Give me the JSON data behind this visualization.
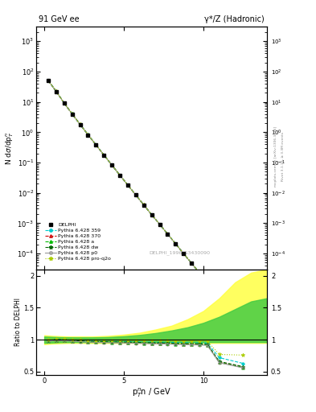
{
  "title_left": "91 GeV ee",
  "title_right": "γ*/Z (Hadronic)",
  "ylabel_main": "N dσ/dp$_T^n$",
  "ylabel_ratio": "Ratio to DELPHI",
  "xlabel": "p$_T^n$n / GeV",
  "watermark": "DELPHI_1996_S3430090",
  "right_label": "Rivet 3.1.10, ≥ 3.3M events",
  "right_label2": "mcplots.cern.ch [arXiv:1306.3436]",
  "x_data": [
    0.25,
    0.75,
    1.25,
    1.75,
    2.25,
    2.75,
    3.25,
    3.75,
    4.25,
    4.75,
    5.25,
    5.75,
    6.25,
    6.75,
    7.25,
    7.75,
    8.25,
    8.75,
    9.25,
    9.75,
    10.25,
    11.0,
    12.5
  ],
  "delphi_y": [
    50.0,
    22.0,
    9.0,
    4.0,
    1.8,
    0.82,
    0.38,
    0.175,
    0.082,
    0.038,
    0.018,
    0.0085,
    0.004,
    0.0019,
    0.00092,
    0.00044,
    0.00021,
    0.0001,
    4.8e-05,
    2.3e-05,
    1.15e-05,
    4.2e-06,
    2.8e-07
  ],
  "delphi_yerr": [
    2.0,
    0.8,
    0.3,
    0.15,
    0.06,
    0.028,
    0.013,
    0.006,
    0.003,
    0.0013,
    0.0006,
    0.0003,
    0.00014,
    6.6e-05,
    3.2e-05,
    1.5e-05,
    7.5e-06,
    3.6e-06,
    1.75e-06,
    8.5e-07,
    4.3e-07,
    1.6e-07,
    1e-08
  ],
  "py359_y": [
    50.5,
    22.3,
    9.15,
    4.04,
    1.82,
    0.83,
    0.384,
    0.177,
    0.083,
    0.0384,
    0.0182,
    0.0086,
    0.00405,
    0.00192,
    0.00093,
    0.000445,
    0.000213,
    0.000101,
    4.86e-05,
    2.33e-05,
    1.16e-05,
    4.25e-06,
    2.84e-07
  ],
  "py370_y": [
    50.3,
    22.2,
    9.09,
    4.02,
    1.81,
    0.822,
    0.381,
    0.1757,
    0.0823,
    0.0382,
    0.01812,
    0.00854,
    0.00402,
    0.00191,
    0.000925,
    0.000442,
    0.000211,
    0.0001003,
    4.83e-05,
    2.31e-05,
    1.16e-05,
    4.22e-06,
    2.81e-07
  ],
  "pya_y": [
    50.2,
    22.1,
    9.05,
    4.01,
    1.805,
    0.821,
    0.381,
    0.1755,
    0.0822,
    0.0381,
    0.01811,
    0.00852,
    0.004015,
    0.001905,
    0.000921,
    0.000441,
    0.000211,
    0.0001002,
    4.82e-05,
    2.31e-05,
    1.15e-05,
    4.21e-06,
    2.81e-07
  ],
  "pydw_y": [
    50.4,
    22.25,
    9.12,
    4.03,
    1.815,
    0.825,
    0.382,
    0.1762,
    0.0825,
    0.0383,
    0.01815,
    0.00856,
    0.00403,
    0.00191,
    0.000923,
    0.000443,
    0.000212,
    0.0001005,
    4.84e-05,
    2.32e-05,
    1.16e-05,
    4.23e-06,
    2.83e-07
  ],
  "pyp0_y": [
    50.1,
    22.0,
    9.0,
    4.0,
    1.8,
    0.82,
    0.38,
    0.175,
    0.082,
    0.038,
    0.018,
    0.0085,
    0.004,
    0.0019,
    0.00092,
    0.00044,
    0.00021,
    0.0001,
    4.8e-05,
    2.3e-05,
    1.15e-05,
    4.2e-06,
    2.8e-07
  ],
  "pyproq2o_y": [
    50.6,
    22.4,
    9.18,
    4.06,
    1.825,
    0.832,
    0.385,
    0.1775,
    0.0832,
    0.0386,
    0.01825,
    0.00862,
    0.00407,
    0.00193,
    0.000933,
    0.000447,
    0.000214,
    0.0001018,
    4.89e-05,
    2.35e-05,
    1.17e-05,
    4.28e-06,
    2.85e-07
  ],
  "ratio_x": [
    0.25,
    0.75,
    1.25,
    1.75,
    2.25,
    2.75,
    3.25,
    3.75,
    4.25,
    4.75,
    5.25,
    5.75,
    6.25,
    6.75,
    7.25,
    7.75,
    8.25,
    8.75,
    9.25,
    9.75,
    10.25,
    11.0,
    12.5
  ],
  "ratio_py359": [
    0.99,
    1.01,
    1.005,
    0.99,
    0.985,
    0.98,
    0.978,
    0.975,
    0.975,
    0.975,
    0.972,
    0.968,
    0.965,
    0.965,
    0.96,
    0.96,
    0.955,
    0.955,
    0.952,
    0.95,
    0.947,
    0.72,
    0.63
  ],
  "ratio_py370": [
    0.985,
    0.995,
    0.99,
    0.982,
    0.975,
    0.97,
    0.966,
    0.963,
    0.96,
    0.958,
    0.955,
    0.952,
    0.948,
    0.946,
    0.942,
    0.94,
    0.935,
    0.932,
    0.928,
    0.925,
    0.92,
    0.65,
    0.57
  ],
  "ratio_pya": [
    0.983,
    0.993,
    0.988,
    0.98,
    0.973,
    0.968,
    0.964,
    0.961,
    0.958,
    0.956,
    0.953,
    0.95,
    0.946,
    0.944,
    0.94,
    0.938,
    0.933,
    0.93,
    0.926,
    0.923,
    0.918,
    0.645,
    0.565
  ],
  "ratio_pydw": [
    0.992,
    1.005,
    1.0,
    0.99,
    0.982,
    0.975,
    0.972,
    0.969,
    0.968,
    0.967,
    0.963,
    0.96,
    0.956,
    0.955,
    0.951,
    0.95,
    0.945,
    0.943,
    0.94,
    0.937,
    0.932,
    0.66,
    0.58
  ],
  "ratio_pyp0": [
    0.98,
    0.99,
    0.985,
    0.977,
    0.97,
    0.965,
    0.96,
    0.957,
    0.955,
    0.952,
    0.948,
    0.945,
    0.941,
    0.939,
    0.935,
    0.933,
    0.928,
    0.925,
    0.921,
    0.918,
    0.913,
    0.64,
    0.56
  ],
  "ratio_pyproq2o": [
    1.0,
    1.02,
    1.015,
    1.005,
    0.998,
    0.995,
    0.99,
    0.99,
    0.99,
    0.99,
    0.988,
    0.987,
    0.986,
    0.988,
    0.985,
    0.985,
    0.983,
    0.983,
    0.982,
    0.982,
    0.98,
    0.77,
    0.76
  ],
  "band_yellow_x": [
    0.0,
    0.5,
    1.0,
    1.5,
    2.0,
    3.0,
    4.0,
    5.0,
    6.0,
    7.0,
    8.0,
    9.0,
    10.0,
    11.0,
    12.0,
    13.0,
    14.0
  ],
  "band_yellow_lo": [
    0.93,
    0.94,
    0.945,
    0.95,
    0.95,
    0.95,
    0.95,
    0.95,
    0.95,
    0.95,
    0.95,
    0.95,
    0.95,
    0.95,
    0.95,
    0.95,
    0.95
  ],
  "band_yellow_hi": [
    1.07,
    1.06,
    1.055,
    1.05,
    1.05,
    1.05,
    1.06,
    1.08,
    1.11,
    1.16,
    1.22,
    1.32,
    1.45,
    1.65,
    1.9,
    2.05,
    2.1
  ],
  "band_green_lo": [
    0.95,
    0.955,
    0.96,
    0.962,
    0.963,
    0.963,
    0.963,
    0.963,
    0.963,
    0.963,
    0.963,
    0.963,
    0.963,
    0.963,
    0.963,
    0.963,
    0.963
  ],
  "band_green_hi": [
    1.05,
    1.045,
    1.04,
    1.038,
    1.037,
    1.037,
    1.042,
    1.055,
    1.075,
    1.105,
    1.145,
    1.195,
    1.265,
    1.36,
    1.48,
    1.6,
    1.65
  ],
  "color_py359": "#00cccc",
  "color_py370": "#cc0000",
  "color_pya": "#00bb00",
  "color_pydw": "#006600",
  "color_pyp0": "#999999",
  "color_pyproq2o": "#aacc00",
  "color_delphi": "#000000",
  "color_band_yellow": "#ffff44",
  "color_band_green": "#44cc44",
  "main_ylim_log": [
    3e-05,
    3000
  ],
  "ratio_ylim": [
    0.45,
    2.1
  ],
  "xlim": [
    -0.5,
    14.0
  ],
  "ratio_yticks": [
    0.5,
    1.0,
    1.5,
    2.0
  ],
  "ratio_ytick_labels": [
    "0.5",
    "1",
    "1.5",
    "2"
  ]
}
